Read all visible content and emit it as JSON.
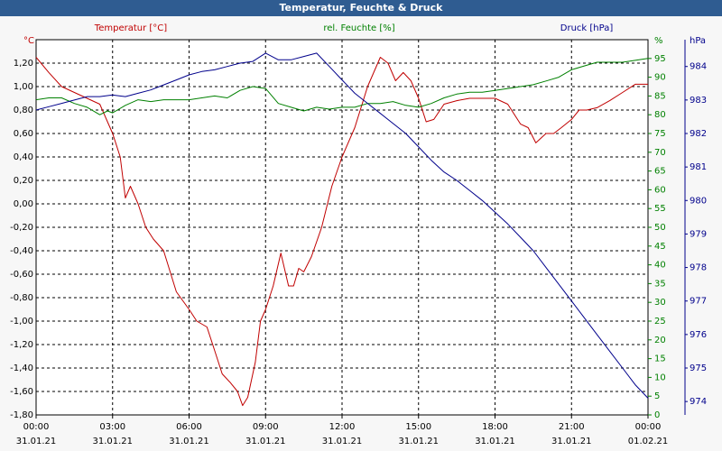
{
  "title": "Temperatur, Feuchte & Druck",
  "chart_data": {
    "type": "line",
    "title": "Temperatur, Feuchte & Druck",
    "grid": true,
    "x_tick_times": [
      "00:00",
      "03:00",
      "06:00",
      "09:00",
      "12:00",
      "15:00",
      "18:00",
      "21:00",
      "00:00"
    ],
    "x_tick_dates": [
      "31.01.21",
      "31.01.21",
      "31.01.21",
      "31.01.21",
      "31.01.21",
      "31.01.21",
      "31.01.21",
      "31.01.21",
      "01.02.21"
    ],
    "xlim": [
      0,
      24
    ],
    "axes": {
      "temp": {
        "label": "Temperatur [°C]",
        "unit": "°C",
        "color": "#c00000",
        "ylim": [
          -1.8,
          1.4
        ],
        "ticks": [
          -1.8,
          -1.6,
          -1.4,
          -1.2,
          -1.0,
          -0.8,
          -0.6,
          -0.4,
          -0.2,
          0.0,
          0.2,
          0.4,
          0.6,
          0.8,
          1.0,
          1.2
        ],
        "tick_labels": [
          "-1,80",
          "-1,60",
          "-1,40",
          "-1,20",
          "-1,00",
          "-0,80",
          "-0,60",
          "-0,40",
          "-0,20",
          "0,00",
          "0,20",
          "0,40",
          "0,60",
          "0,80",
          "1,00",
          "1,20"
        ]
      },
      "hum": {
        "label": "rel. Feuchte [%]",
        "unit": "%",
        "color": "#008000",
        "ylim": [
          0,
          100
        ],
        "ticks": [
          0,
          5,
          10,
          15,
          20,
          25,
          30,
          35,
          40,
          45,
          50,
          55,
          60,
          65,
          70,
          75,
          80,
          85,
          90,
          95
        ],
        "tick_labels": [
          "0",
          "5",
          "10",
          "15",
          "20",
          "25",
          "30",
          "35",
          "40",
          "45",
          "50",
          "55",
          "60",
          "65",
          "70",
          "75",
          "80",
          "85",
          "90",
          "95"
        ]
      },
      "press": {
        "label": "Druck [hPa]",
        "unit": "hPa",
        "color": "#00008b",
        "ylim": [
          973.6,
          984.8
        ],
        "ticks": [
          974,
          975,
          976,
          977,
          978,
          979,
          980,
          981,
          982,
          983,
          984
        ],
        "tick_labels": [
          "974",
          "975",
          "976",
          "977",
          "978",
          "979",
          "980",
          "981",
          "982",
          "983",
          "984"
        ]
      }
    },
    "series": [
      {
        "name": "Temperatur",
        "axis": "temp",
        "x": [
          0,
          0.5,
          1,
          1.5,
          2,
          2.5,
          2.8,
          3,
          3.3,
          3.5,
          3.7,
          4,
          4.3,
          4.6,
          5,
          5.5,
          6,
          6.3,
          6.7,
          7,
          7.3,
          7.6,
          7.9,
          8.1,
          8.3,
          8.6,
          8.8,
          9,
          9.3,
          9.6,
          9.9,
          10.1,
          10.3,
          10.5,
          10.8,
          11.2,
          11.6,
          12,
          12.5,
          13,
          13.5,
          13.8,
          14.1,
          14.4,
          14.7,
          15,
          15.3,
          15.6,
          16,
          16.5,
          17,
          17.5,
          18,
          18.5,
          19,
          19.3,
          19.6,
          20,
          20.3,
          20.6,
          21,
          21.3,
          21.6,
          22,
          22.5,
          23,
          23.5,
          24
        ],
        "values": [
          1.25,
          1.12,
          1.0,
          0.95,
          0.9,
          0.85,
          0.7,
          0.6,
          0.4,
          0.05,
          0.15,
          0.0,
          -0.2,
          -0.3,
          -0.4,
          -0.75,
          -0.9,
          -1.0,
          -1.05,
          -1.25,
          -1.45,
          -1.52,
          -1.6,
          -1.72,
          -1.65,
          -1.35,
          -1.0,
          -0.9,
          -0.7,
          -0.42,
          -0.7,
          -0.7,
          -0.55,
          -0.58,
          -0.45,
          -0.2,
          0.15,
          0.4,
          0.65,
          1.0,
          1.25,
          1.2,
          1.05,
          1.12,
          1.05,
          0.9,
          0.7,
          0.72,
          0.85,
          0.88,
          0.9,
          0.9,
          0.9,
          0.85,
          0.68,
          0.65,
          0.52,
          0.6,
          0.6,
          0.65,
          0.72,
          0.8,
          0.8,
          0.82,
          0.88,
          0.95,
          1.02,
          1.02
        ]
      },
      {
        "name": "rel. Feuchte",
        "axis": "hum",
        "x": [
          0,
          0.5,
          1,
          1.5,
          2,
          2.5,
          2.8,
          3,
          3.5,
          4,
          4.5,
          5,
          5.5,
          6,
          6.5,
          7,
          7.5,
          8,
          8.5,
          9,
          9.5,
          10,
          10.5,
          11,
          11.5,
          12,
          12.5,
          13,
          13.5,
          14,
          14.5,
          15,
          15.5,
          16,
          16.5,
          17,
          17.5,
          18,
          18.5,
          19,
          19.5,
          20,
          20.5,
          21,
          21.5,
          22,
          22.5,
          23,
          23.5,
          24
        ],
        "values": [
          84,
          84.5,
          84.5,
          83,
          82,
          80,
          81,
          80.5,
          82.5,
          84,
          83.5,
          84,
          84,
          84,
          84.5,
          85,
          84.5,
          86.5,
          87.5,
          87,
          83,
          82,
          81,
          82,
          81.5,
          82,
          82,
          83,
          83,
          83.5,
          82.5,
          82,
          83,
          84.5,
          85.5,
          86,
          86,
          86.5,
          87,
          87.5,
          88,
          89,
          90,
          92,
          93,
          94,
          94,
          94,
          94.5,
          95
        ]
      },
      {
        "name": "Druck",
        "axis": "press",
        "x": [
          0,
          0.5,
          1,
          1.5,
          2,
          2.5,
          3,
          3.5,
          4,
          4.5,
          5,
          5.5,
          6,
          6.5,
          7,
          7.5,
          8,
          8.5,
          9,
          9.5,
          10,
          10.5,
          11,
          11.5,
          12,
          12.5,
          13,
          13.5,
          14,
          14.5,
          15,
          15.5,
          16,
          16.5,
          17,
          17.5,
          18,
          18.5,
          19,
          19.5,
          20,
          20.5,
          21,
          21.5,
          22,
          22.5,
          23,
          23.5,
          24
        ],
        "values": [
          982.7,
          982.8,
          982.9,
          983.0,
          983.1,
          983.1,
          983.15,
          983.1,
          983.2,
          983.3,
          983.45,
          983.6,
          983.75,
          983.85,
          983.9,
          984.0,
          984.1,
          984.15,
          984.4,
          984.2,
          984.2,
          984.3,
          984.4,
          984.0,
          983.6,
          983.2,
          982.9,
          982.6,
          982.3,
          982.0,
          981.6,
          981.2,
          980.85,
          980.6,
          980.3,
          980.0,
          979.65,
          979.3,
          978.9,
          978.5,
          978.0,
          977.5,
          977.0,
          976.5,
          976.0,
          975.5,
          975.0,
          974.5,
          974.1
        ]
      }
    ]
  }
}
